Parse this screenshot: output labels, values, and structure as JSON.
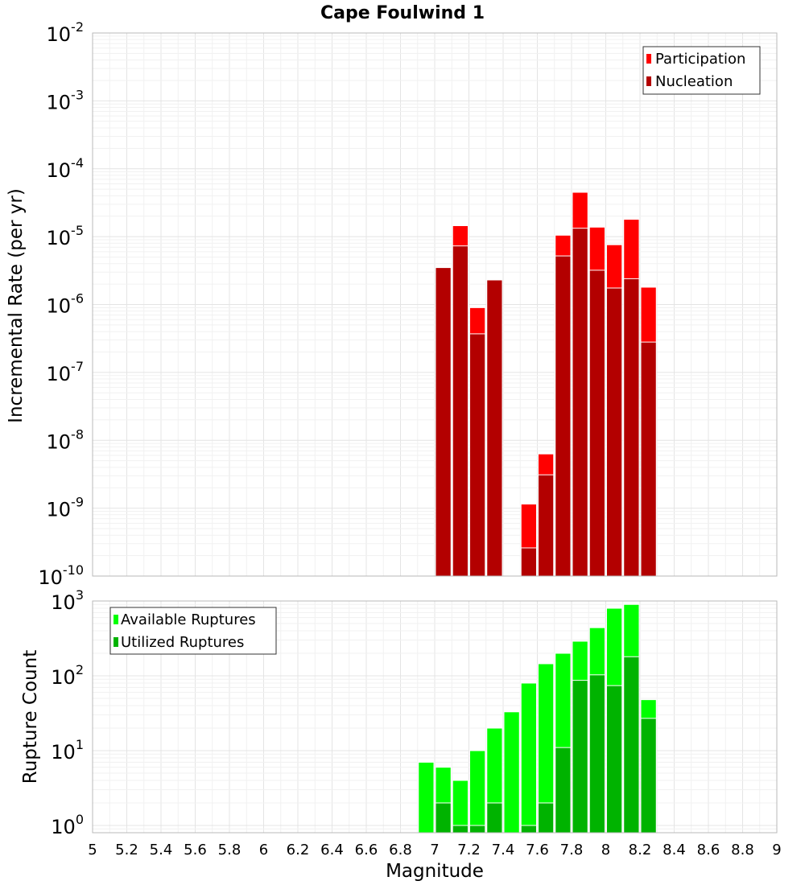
{
  "chart_data": [
    {
      "type": "bar",
      "title": "Cape Foulwind 1",
      "ylabel": "Incremental Rate (per yr)",
      "xlabel": "",
      "xlim": [
        5,
        9
      ],
      "ylim": [
        1e-10,
        0.01
      ],
      "y_scale": "log",
      "grid": true,
      "legend_position": "top-right",
      "bin_width": 0.1,
      "ytick_base": "10",
      "ytick_exponents": [
        "-10",
        "-9",
        "-8",
        "-7",
        "-6",
        "-5",
        "-4",
        "-3",
        "-2"
      ],
      "series": [
        {
          "name": "Participation",
          "color": "#ff0000",
          "x": [
            7.05,
            7.15,
            7.25,
            7.35,
            7.55,
            7.65,
            7.75,
            7.85,
            7.95,
            8.05,
            8.15,
            8.25
          ],
          "values": [
            3.5e-06,
            1.45e-05,
            9e-07,
            2.3e-06,
            1.15e-09,
            6.3e-09,
            1.05e-05,
            4.5e-05,
            1.38e-05,
            7.6e-06,
            1.8e-05,
            1.8e-06
          ]
        },
        {
          "name": "Nucleation",
          "color": "#b30000",
          "x": [
            7.05,
            7.15,
            7.25,
            7.35,
            7.55,
            7.65,
            7.75,
            7.85,
            7.95,
            8.05,
            8.15,
            8.25
          ],
          "values": [
            3.5e-06,
            7.3e-06,
            3.7e-07,
            2.3e-06,
            2.6e-10,
            3.1e-09,
            5.2e-06,
            1.33e-05,
            3.2e-06,
            1.75e-06,
            2.4e-06,
            2.8e-07
          ]
        }
      ]
    },
    {
      "type": "bar",
      "title": "",
      "xlabel": "Magnitude",
      "ylabel": "Rupture Count",
      "xlim": [
        5,
        9
      ],
      "ylim": [
        0.8,
        1000
      ],
      "y_scale": "log",
      "grid": true,
      "legend_position": "top-left",
      "bin_width": 0.1,
      "xticks": [
        "5",
        "5.2",
        "5.4",
        "5.6",
        "5.8",
        "6",
        "6.2",
        "6.4",
        "6.6",
        "6.8",
        "7",
        "7.2",
        "7.4",
        "7.6",
        "7.8",
        "8",
        "8.2",
        "8.4",
        "8.6",
        "8.8",
        "9"
      ],
      "ytick_base": "10",
      "ytick_exponents": [
        "0",
        "1",
        "2",
        "3"
      ],
      "series": [
        {
          "name": "Available Ruptures",
          "color": "#00ff00",
          "x": [
            6.95,
            7.05,
            7.15,
            7.25,
            7.35,
            7.45,
            7.55,
            7.65,
            7.75,
            7.85,
            7.95,
            8.05,
            8.15,
            8.25
          ],
          "values": [
            7,
            6,
            4,
            10,
            20,
            33,
            80,
            145,
            200,
            290,
            440,
            800,
            900,
            48
          ]
        },
        {
          "name": "Utilized Ruptures",
          "color": "#00b300",
          "x": [
            7.05,
            7.15,
            7.25,
            7.35,
            7.55,
            7.65,
            7.75,
            7.85,
            7.95,
            8.05,
            8.15,
            8.25
          ],
          "values": [
            2,
            1,
            1,
            2,
            1,
            2,
            11,
            87,
            103,
            74,
            180,
            27
          ]
        }
      ]
    }
  ]
}
